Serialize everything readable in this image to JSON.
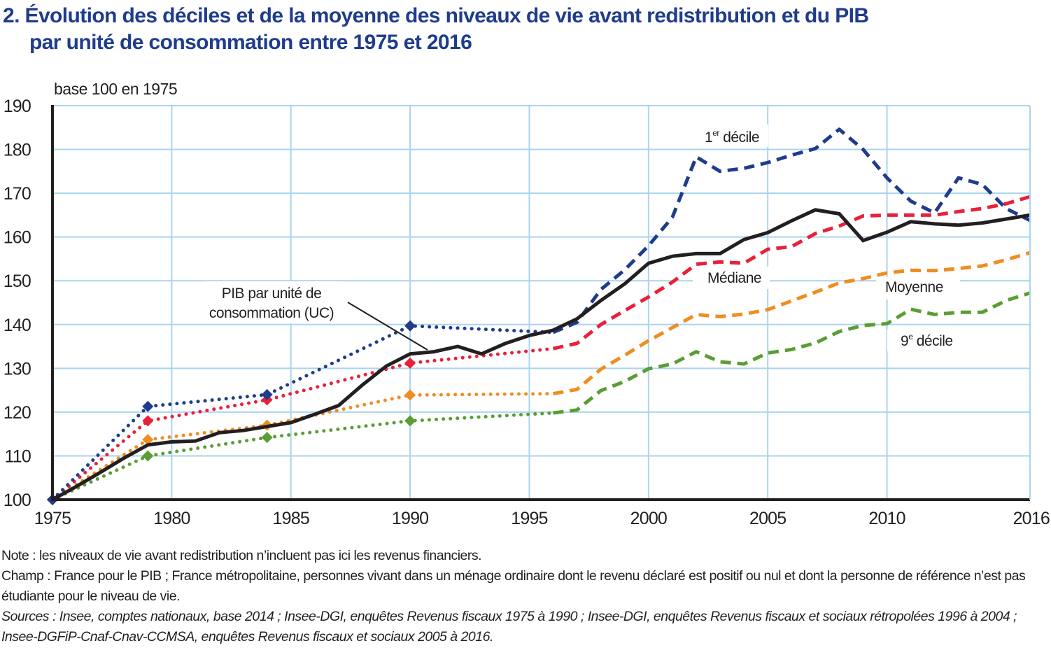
{
  "title_line1": "2. Évolution des déciles et de la moyenne des niveaux de vie avant redistribution et du PIB",
  "title_line2": "par unité de consommation entre 1975 et 2016",
  "chart_data": {
    "type": "line",
    "title": "Évolution des déciles et de la moyenne des niveaux de vie avant redistribution et du PIB par unité de consommation entre 1975 et 2016",
    "ylabel": "base 100 en 1975",
    "xlabel": "",
    "xlim": [
      1975,
      2016
    ],
    "ylim": [
      100,
      190
    ],
    "grid": true,
    "x_ticks": [
      "1975",
      "1980",
      "1985",
      "1990",
      "1995",
      "2000",
      "2005",
      "2010",
      "2016"
    ],
    "y_ticks": [
      "100",
      "110",
      "120",
      "130",
      "140",
      "150",
      "160",
      "170",
      "180",
      "190"
    ],
    "note_on_style": "dotted segments with diamond markers = survey years 1975, 1979, 1984, 1990 (interpolated); dashed = annual series 1996-2016",
    "series": [
      {
        "name": "1er décile",
        "label_main": "1",
        "label_sup": "er",
        "label_rest": " décile",
        "color": "#1f3c8c",
        "markers": [
          [
            1975,
            100
          ],
          [
            1979,
            121.3
          ],
          [
            1984,
            124
          ],
          [
            1990,
            139.7
          ]
        ],
        "dotted": [
          [
            1975,
            100
          ],
          [
            1979,
            121.3
          ],
          [
            1984,
            124
          ],
          [
            1990,
            139.7
          ],
          [
            1996,
            138.2
          ]
        ],
        "dashed": [
          [
            1996,
            138.2
          ],
          [
            1997,
            140.5
          ],
          [
            1998,
            148
          ],
          [
            1999,
            152.5
          ],
          [
            2000,
            158
          ],
          [
            2001,
            164.5
          ],
          [
            2002,
            178.3
          ],
          [
            2003,
            175
          ],
          [
            2004,
            175.7
          ],
          [
            2005,
            177
          ],
          [
            2006,
            178.7
          ],
          [
            2007,
            180.2
          ],
          [
            2008,
            184.6
          ],
          [
            2009,
            180
          ],
          [
            2010,
            173.5
          ],
          [
            2011,
            168.2
          ],
          [
            2012,
            165.5
          ],
          [
            2013,
            173.5
          ],
          [
            2014,
            172
          ],
          [
            2015,
            166.5
          ],
          [
            2016,
            163.8
          ]
        ]
      },
      {
        "name": "Médiane",
        "label_main": "Médiane",
        "color": "#e8203a",
        "markers": [
          [
            1975,
            100
          ],
          [
            1979,
            118
          ],
          [
            1984,
            122.8
          ],
          [
            1990,
            131.2
          ]
        ],
        "dotted": [
          [
            1975,
            100
          ],
          [
            1979,
            118
          ],
          [
            1984,
            122.8
          ],
          [
            1990,
            131.2
          ],
          [
            1996,
            134.5
          ]
        ],
        "dashed": [
          [
            1996,
            134.5
          ],
          [
            1997,
            135.7
          ],
          [
            1998,
            140
          ],
          [
            1999,
            143.2
          ],
          [
            2000,
            146.3
          ],
          [
            2001,
            149.7
          ],
          [
            2002,
            153.8
          ],
          [
            2003,
            154.3
          ],
          [
            2004,
            154
          ],
          [
            2005,
            157.2
          ],
          [
            2006,
            157.8
          ],
          [
            2007,
            160.8
          ],
          [
            2008,
            162.5
          ],
          [
            2009,
            164.8
          ],
          [
            2010,
            165
          ],
          [
            2011,
            165
          ],
          [
            2012,
            165
          ],
          [
            2013,
            165.8
          ],
          [
            2014,
            166.5
          ],
          [
            2015,
            167.6
          ],
          [
            2016,
            169.2
          ]
        ]
      },
      {
        "name": "Moyenne",
        "label_main": "Moyenne",
        "color": "#ef8d22",
        "markers": [
          [
            1975,
            100
          ],
          [
            1979,
            113.7
          ],
          [
            1984,
            117
          ],
          [
            1990,
            123.9
          ]
        ],
        "dotted": [
          [
            1975,
            100
          ],
          [
            1979,
            113.7
          ],
          [
            1984,
            117
          ],
          [
            1990,
            123.9
          ],
          [
            1996,
            124.2
          ]
        ],
        "dashed": [
          [
            1996,
            124.2
          ],
          [
            1997,
            125.2
          ],
          [
            1998,
            129.8
          ],
          [
            1999,
            133
          ],
          [
            2000,
            136.3
          ],
          [
            2001,
            139.3
          ],
          [
            2002,
            142.3
          ],
          [
            2003,
            141.8
          ],
          [
            2004,
            142.4
          ],
          [
            2005,
            143.4
          ],
          [
            2006,
            145.4
          ],
          [
            2007,
            147.4
          ],
          [
            2008,
            149.5
          ],
          [
            2009,
            150.5
          ],
          [
            2010,
            151.8
          ],
          [
            2011,
            152.4
          ],
          [
            2012,
            152.3
          ],
          [
            2013,
            152.8
          ],
          [
            2014,
            153.4
          ],
          [
            2015,
            154.8
          ],
          [
            2016,
            156.4
          ]
        ]
      },
      {
        "name": "9e décile",
        "label_main": "9",
        "label_sup": "e",
        "label_rest": " décile",
        "color": "#5a9e33",
        "markers": [
          [
            1975,
            100
          ],
          [
            1979,
            110
          ],
          [
            1984,
            114.2
          ],
          [
            1990,
            118
          ]
        ],
        "dotted": [
          [
            1975,
            100
          ],
          [
            1979,
            110
          ],
          [
            1984,
            114.2
          ],
          [
            1990,
            118
          ],
          [
            1996,
            119.8
          ]
        ],
        "dashed": [
          [
            1996,
            119.8
          ],
          [
            1997,
            120.5
          ],
          [
            1998,
            124.9
          ],
          [
            1999,
            127
          ],
          [
            2000,
            129.9
          ],
          [
            2001,
            131
          ],
          [
            2002,
            133.8
          ],
          [
            2003,
            131.5
          ],
          [
            2004,
            131
          ],
          [
            2005,
            133.5
          ],
          [
            2006,
            134.3
          ],
          [
            2007,
            135.8
          ],
          [
            2008,
            138.4
          ],
          [
            2009,
            139.8
          ],
          [
            2010,
            140.2
          ],
          [
            2011,
            143.5
          ],
          [
            2012,
            142.3
          ],
          [
            2013,
            142.8
          ],
          [
            2014,
            142.8
          ],
          [
            2015,
            145.5
          ],
          [
            2016,
            147.2
          ]
        ]
      },
      {
        "name": "PIB par unité de consommation (UC)",
        "label_line1": "PIB par unité de",
        "label_line2": "consommation (UC)",
        "color": "#231f20",
        "solid": [
          [
            1975,
            100
          ],
          [
            1976,
            103
          ],
          [
            1977,
            106.2
          ],
          [
            1978,
            109.5
          ],
          [
            1979,
            112.5
          ],
          [
            1980,
            113.2
          ],
          [
            1981,
            113.4
          ],
          [
            1982,
            115.3
          ],
          [
            1983,
            115.8
          ],
          [
            1984,
            116.7
          ],
          [
            1985,
            117.6
          ],
          [
            1986,
            119.5
          ],
          [
            1987,
            121.5
          ],
          [
            1988,
            126.2
          ],
          [
            1989,
            130.5
          ],
          [
            1990,
            133.3
          ],
          [
            1991,
            133.8
          ],
          [
            1992,
            135
          ],
          [
            1993,
            133.3
          ],
          [
            1994,
            135.7
          ],
          [
            1995,
            137.5
          ],
          [
            1996,
            138.7
          ],
          [
            1997,
            141.3
          ],
          [
            1998,
            145.5
          ],
          [
            1999,
            149.3
          ],
          [
            2000,
            154
          ],
          [
            2001,
            155.6
          ],
          [
            2002,
            156.2
          ],
          [
            2003,
            156.2
          ],
          [
            2004,
            159.4
          ],
          [
            2005,
            161
          ],
          [
            2006,
            163.7
          ],
          [
            2007,
            166.2
          ],
          [
            2008,
            165.3
          ],
          [
            2009,
            159.2
          ],
          [
            2010,
            161.1
          ],
          [
            2011,
            163.5
          ],
          [
            2012,
            163
          ],
          [
            2013,
            162.7
          ],
          [
            2014,
            163.2
          ],
          [
            2015,
            164.1
          ],
          [
            2016,
            165
          ]
        ]
      }
    ]
  },
  "notes": {
    "note": "Note : les niveaux de vie avant redistribution n’incluent pas ici les revenus financiers.",
    "champ": "Champ : France pour le PIB ; France métropolitaine, personnes vivant dans un ménage ordinaire dont le revenu déclaré est positif ou nul et dont la personne de référence n’est pas étudiante pour le niveau de vie.",
    "sources": "Sources : Insee, comptes nationaux, base 2014 ; Insee-DGI, enquêtes Revenus fiscaux 1975 à 1990 ; Insee-DGI, enquêtes Revenus fiscaux et sociaux rétropolées 1996 à 2004 ; Insee-DGFiP-Cnaf-Cnav-CCMSA, enquêtes Revenus fiscaux et sociaux 2005 à 2016."
  }
}
